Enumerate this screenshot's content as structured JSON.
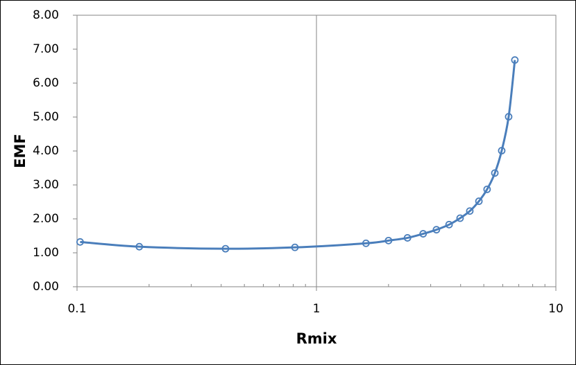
{
  "chart_data": {
    "type": "line",
    "x_label": "Rmix",
    "y_label": "EMF",
    "x": [
      0.103,
      0.182,
      0.417,
      0.813,
      1.61,
      2.0,
      2.4,
      2.79,
      3.17,
      3.58,
      3.98,
      4.37,
      4.77,
      5.16,
      5.56,
      5.94,
      6.35,
      6.74
    ],
    "series": [
      {
        "name": "EMF",
        "color": "#4a7ebb",
        "values": [
          1.32,
          1.18,
          1.12,
          1.16,
          1.28,
          1.36,
          1.44,
          1.56,
          1.68,
          1.83,
          2.02,
          2.23,
          2.52,
          2.87,
          3.35,
          4.01,
          5.01,
          6.68
        ]
      }
    ],
    "xscale": "log",
    "xlim": [
      0.1,
      10
    ],
    "xticks": [
      0.1,
      1,
      10
    ],
    "ylim": [
      0,
      8
    ],
    "yticks": [
      {
        "value": 0,
        "label": "0.00"
      },
      {
        "value": 1,
        "label": "1.00"
      },
      {
        "value": 2,
        "label": "2.00"
      },
      {
        "value": 3,
        "label": "3.00"
      },
      {
        "value": 4,
        "label": "4.00"
      },
      {
        "value": 5,
        "label": "5.00"
      },
      {
        "value": 6,
        "label": "6.00"
      },
      {
        "value": 7,
        "label": "7.00"
      },
      {
        "value": 8,
        "label": "8.00"
      }
    ],
    "grid": "x"
  }
}
